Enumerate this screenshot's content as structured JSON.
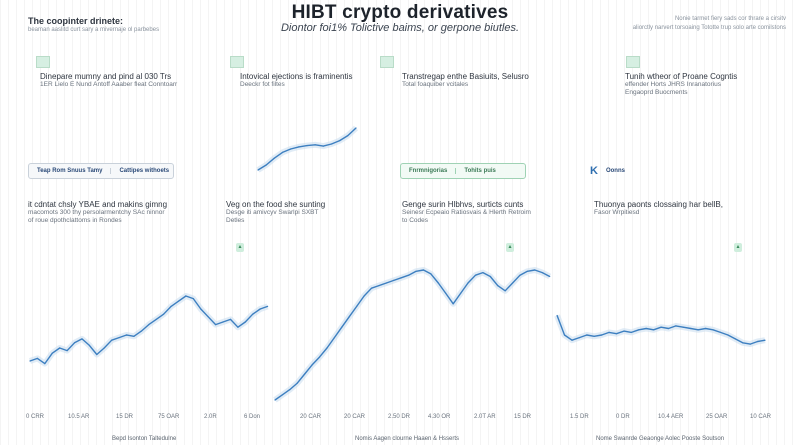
{
  "header": {
    "title": "HIBT crypto derivatives",
    "subtitle": "Diontor foi1% Tolictive baims, or gerpone biutles.",
    "corner_left_title": "The coopinter drinete:",
    "corner_left_sub": "beaman aaslitd curt sary a mivernaje ol parbebes",
    "corner_right_line1": "Nonie tarmet fiery sads cor thrare a cirsitv",
    "corner_right_line2": "aliorctly narvert torsoaing Tototte trup solo arte comilstons"
  },
  "panels": [
    {
      "heading": "Dinepare mumny and pind al 030 Trs",
      "sub": "1ER Lielo E Nund Antoff Aaaber fleat Conntoarr"
    },
    {
      "heading": "Intovical ejections is framinentis",
      "sub": "Deeckr fot filtes"
    },
    {
      "heading": "Transtregap enthe Basiuits, Selusro",
      "sub": "Total foaquiber vcitales"
    },
    {
      "heading": "Tunih wtheor of Proane Cogntis",
      "sub": "effender Horts JHRS Inranatorius\nEngaoprd Buocments"
    }
  ],
  "tabs_a": [
    "Teap Rom Snuus Tamy",
    "Cattipes withoets"
  ],
  "tabs_b": [
    "Fnrmnigorias",
    "Tohits puis"
  ],
  "k_badge": {
    "letter": "K",
    "label": "Oonns"
  },
  "notes": [
    {
      "heading": "it cdntat chsly YBAE and makins gimng",
      "sub": "macomots 300 thy persolarmentchy SAc ninnor\nof roue dpothclattoms in Rondes"
    },
    {
      "heading": "Veg on the food she sunting",
      "sub": "Desge iti amivcyv Swarlpi SXBT\nDetles"
    },
    {
      "heading": "Genge surin Hlbhvs, surticts cunts",
      "sub": "Seinesr Ecpeaio Ratiosvais & Hlerth Retroim\nto Codes"
    },
    {
      "heading": "Thuonya paonts clossaing har bellB,",
      "sub": "Fasor Wrpitiesd"
    }
  ],
  "x_ticks": [
    "0 CRR",
    "10.5 AR",
    "15 DR",
    "75 OAR",
    "2.0R",
    "6 Don",
    "20 CAR",
    "20 CAR",
    "2.50 DR",
    "4.30 OR",
    "2.0T AR",
    "15 DR",
    "1.5 DR",
    "0 DR",
    "10.4 AER",
    "25 OAR",
    "10 CAR"
  ],
  "footer": {
    "left": "Bepd Isonton Taltedulne",
    "center": "Nomis Aagen clourne Haaen & Hsserts",
    "right": "Nome Swanrde Geaonge Aolec Pooste Soutson"
  },
  "colors": {
    "line": "#3d7fc0",
    "band": "#c9dcee",
    "mark": "#d6efe2",
    "text": "#2a2f36"
  },
  "chart_data": [
    {
      "type": "line",
      "name": "inset",
      "x": [
        0,
        1,
        2,
        3,
        4,
        5,
        6,
        7,
        8,
        9,
        10,
        11,
        12
      ],
      "y": [
        0.0,
        0.12,
        0.28,
        0.42,
        0.5,
        0.55,
        0.58,
        0.6,
        0.57,
        0.62,
        0.7,
        0.82,
        1.0
      ],
      "title": "",
      "xlabel": "",
      "ylabel": "",
      "grid": true
    },
    {
      "type": "line",
      "name": "lower",
      "x": [
        0,
        1,
        2,
        3,
        4,
        5,
        6,
        7,
        8,
        9,
        10,
        11,
        12,
        13,
        14,
        15,
        16,
        17,
        18,
        19,
        20,
        21,
        22,
        23,
        24,
        25,
        26,
        27,
        28,
        29,
        30,
        31,
        32,
        33,
        34,
        35,
        36,
        37,
        38,
        39,
        40,
        41,
        42,
        43,
        44,
        45,
        46,
        47,
        48,
        49,
        50,
        51,
        52,
        53,
        54,
        55,
        56,
        57,
        58,
        59,
        60,
        61,
        62,
        63,
        64,
        65,
        66,
        67,
        68,
        69,
        70,
        71,
        72,
        73,
        74,
        75,
        76,
        77,
        78,
        79,
        80,
        81,
        82,
        83,
        84,
        85,
        86,
        87,
        88,
        89,
        90,
        91,
        92,
        93,
        94,
        95,
        96,
        97,
        98,
        99
      ],
      "y": [
        0.3,
        0.32,
        0.28,
        0.36,
        0.4,
        0.38,
        0.44,
        0.47,
        0.42,
        0.35,
        0.4,
        0.46,
        0.48,
        0.5,
        0.49,
        0.53,
        0.58,
        0.62,
        0.66,
        0.72,
        0.76,
        0.8,
        0.78,
        0.7,
        0.64,
        0.58,
        0.6,
        0.62,
        0.56,
        0.6,
        0.66,
        0.7,
        0.72,
        0.0,
        0.04,
        0.08,
        0.13,
        0.2,
        0.27,
        0.33,
        0.4,
        0.48,
        0.56,
        0.64,
        0.72,
        0.8,
        0.86,
        0.88,
        0.9,
        0.92,
        0.94,
        0.96,
        0.99,
        1.0,
        0.97,
        0.9,
        0.82,
        0.74,
        0.82,
        0.9,
        0.96,
        0.98,
        0.95,
        0.88,
        0.84,
        0.9,
        0.96,
        0.99,
        1.0,
        0.98,
        0.95,
        0.65,
        0.5,
        0.46,
        0.48,
        0.5,
        0.49,
        0.5,
        0.52,
        0.51,
        0.53,
        0.52,
        0.54,
        0.55,
        0.54,
        0.56,
        0.55,
        0.57,
        0.56,
        0.55,
        0.54,
        0.55,
        0.54,
        0.52,
        0.5,
        0.47,
        0.44,
        0.43,
        0.45,
        0.46
      ],
      "title": "",
      "xlabel": "",
      "ylabel": "",
      "grid": true
    }
  ]
}
